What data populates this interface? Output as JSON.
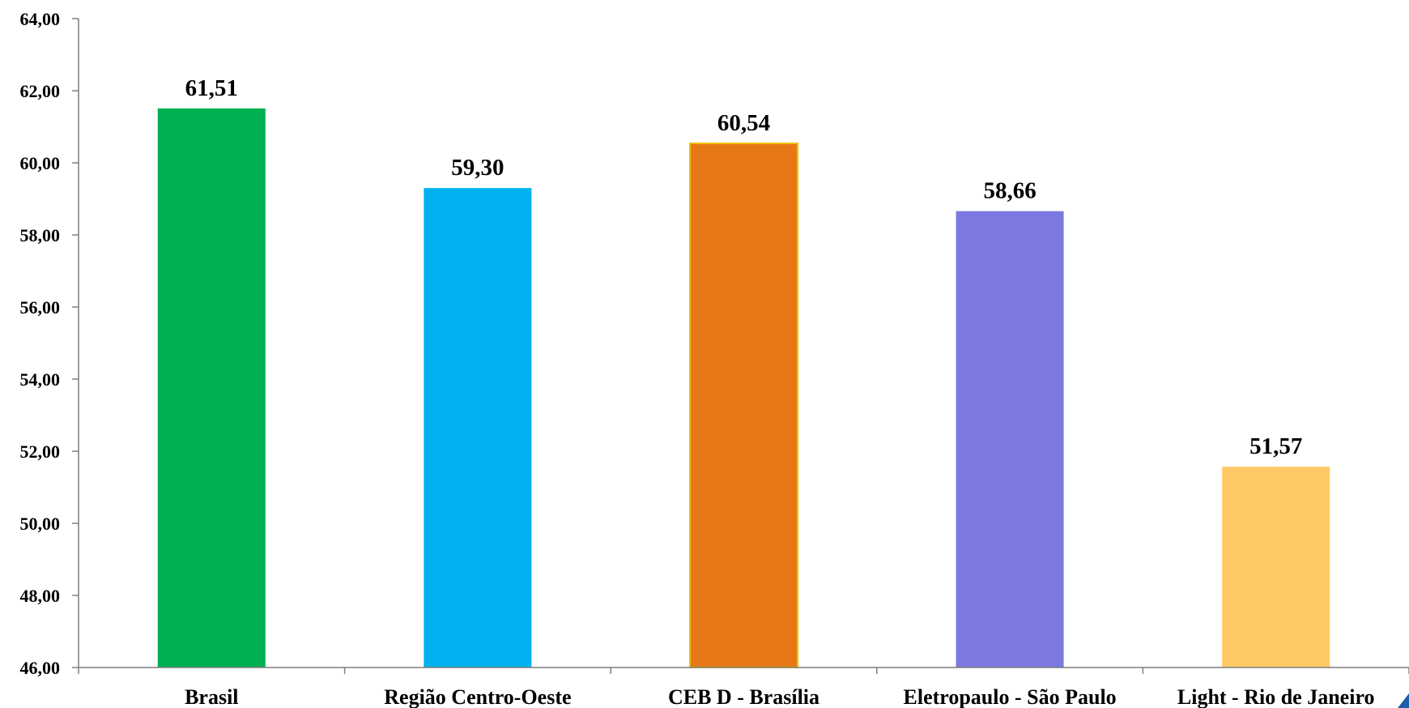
{
  "chart_data": {
    "type": "bar",
    "categories": [
      "Brasil",
      "Região Centro-Oeste",
      "CEB D - Brasília",
      "Eletropaulo - São Paulo",
      "Light - Rio de Janeiro"
    ],
    "values": [
      61.51,
      59.3,
      60.54,
      58.66,
      51.57
    ],
    "value_labels": [
      "61,51",
      "59,30",
      "60,54",
      "58,66",
      "51,57"
    ],
    "colors": [
      "#00b050",
      "#00b0f0",
      "#e67817",
      "#7b79e0",
      "#ffca66"
    ],
    "ylim": [
      46,
      64
    ],
    "ytick_labels": [
      "46,00",
      "48,00",
      "50,00",
      "52,00",
      "54,00",
      "56,00",
      "58,00",
      "60,00",
      "62,00",
      "64,00"
    ],
    "grid": false,
    "legend": "none"
  }
}
